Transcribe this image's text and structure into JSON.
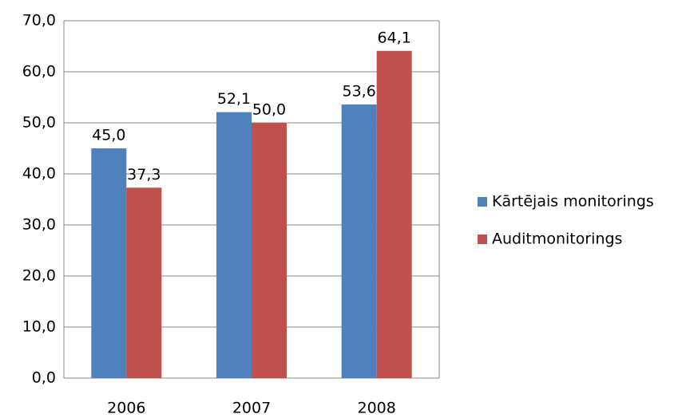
{
  "chart_data": {
    "type": "bar",
    "categories": [
      "2006",
      "2007",
      "2008"
    ],
    "series": [
      {
        "name": "Kārtējais monitorings",
        "color": "#4f81bd",
        "values": [
          45.0,
          52.1,
          53.6
        ],
        "value_labels": [
          "45,0",
          "52,1",
          "53,6"
        ]
      },
      {
        "name": "Auditmonitorings",
        "color": "#c0504d",
        "values": [
          37.3,
          50.0,
          64.1
        ],
        "value_labels": [
          "37,3",
          "50,0",
          "64,1"
        ]
      }
    ],
    "ylim": [
      0,
      70
    ],
    "yticks": [
      {
        "value": 0,
        "label": "0,0"
      },
      {
        "value": 10,
        "label": "10,0"
      },
      {
        "value": 20,
        "label": "20,0"
      },
      {
        "value": 30,
        "label": "30,0"
      },
      {
        "value": 40,
        "label": "40,0"
      },
      {
        "value": 50,
        "label": "50,0"
      },
      {
        "value": 60,
        "label": "60,0"
      },
      {
        "value": 70,
        "label": "70,0"
      }
    ],
    "grid": true,
    "legend": "right"
  }
}
